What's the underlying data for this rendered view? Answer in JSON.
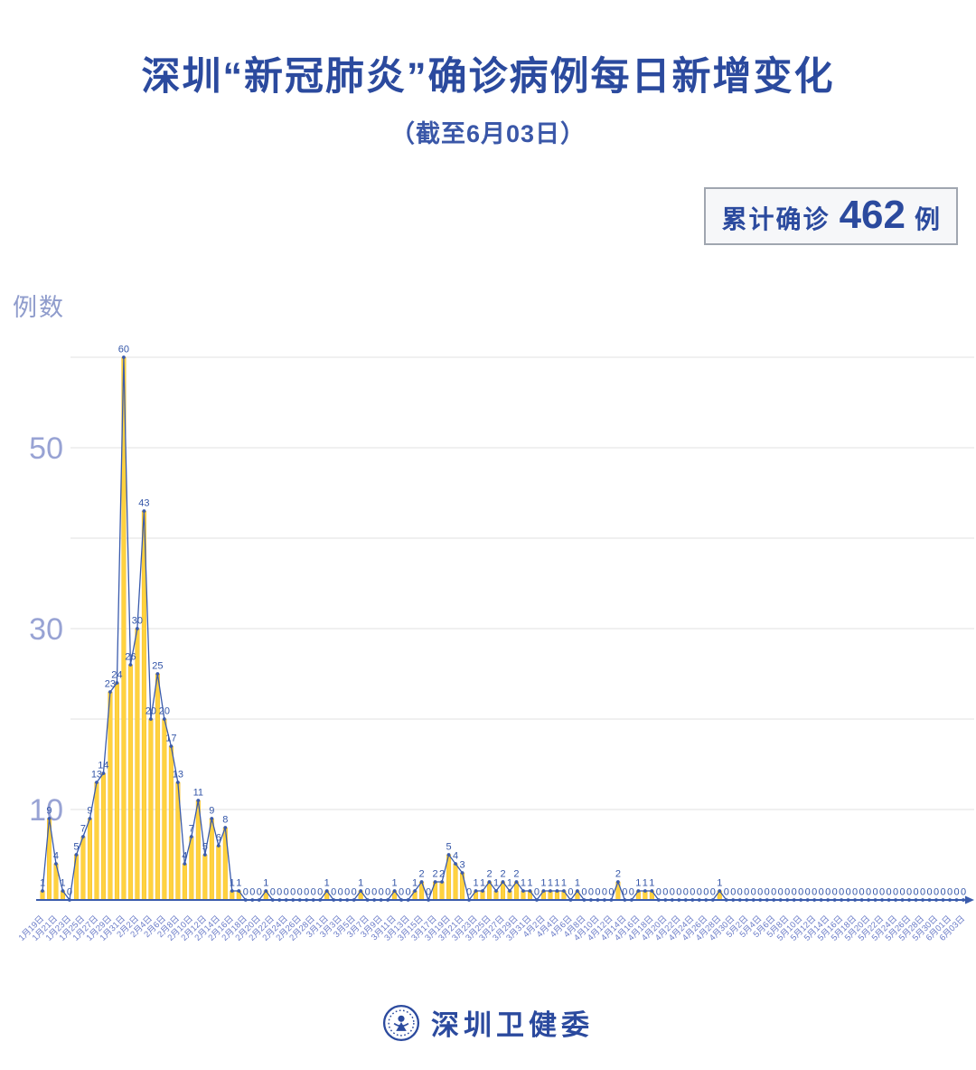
{
  "header": {
    "title": "深圳“新冠肺炎”确诊病例每日新增变化",
    "subtitle": "（截至6月03日）"
  },
  "summary_badge": {
    "prefix": "累计确诊",
    "value": "462",
    "unit": "例"
  },
  "footer": {
    "brand": "深圳卫健委",
    "logo": "shenzhen-health-commission-emblem"
  },
  "chart_data": {
    "type": "area",
    "title": "深圳“新冠肺炎”确诊病例每日新增变化",
    "subtitle": "（截至6月03日）",
    "ylabel": "例数",
    "xlabel": "",
    "ylim": [
      0,
      60
    ],
    "grid": true,
    "legend_position": "none",
    "gridline_values": [
      10,
      20,
      30,
      40,
      50,
      60
    ],
    "ytick_labels": [
      10,
      30,
      50
    ],
    "x_tick_every": 2,
    "x_tick_labels": [
      "1月19日",
      "1月21日",
      "1月23日",
      "1月25日",
      "1月27日",
      "1月29日",
      "1月31日",
      "2月2日",
      "2月4日",
      "2月6日",
      "2月8日",
      "2月10日",
      "2月12日",
      "2月14日",
      "2月16日",
      "2月18日",
      "2月20日",
      "2月22日",
      "2月24日",
      "2月26日",
      "2月28日",
      "3月1日",
      "3月3日",
      "3月5日",
      "3月7日",
      "3月9日",
      "3月11日",
      "3月13日",
      "3月15日",
      "3月17日",
      "3月19日",
      "3月21日",
      "3月23日",
      "3月25日",
      "3月27日",
      "3月29日",
      "3月31日",
      "4月2日",
      "4月4日",
      "4月6日",
      "4月8日",
      "4月10日",
      "4月12日",
      "4月14日",
      "4月16日",
      "4月18日",
      "4月20日",
      "4月22日",
      "4月24日",
      "4月26日",
      "4月28日",
      "4月30日",
      "5月2日",
      "5月4日",
      "5月6日",
      "5月8日",
      "5月10日",
      "5月12日",
      "5月14日",
      "5月16日",
      "5月18日",
      "5月20日",
      "5月22日",
      "5月24日",
      "5月26日",
      "5月28日",
      "5月30日",
      "6月01日",
      "6月03日"
    ],
    "values": [
      1,
      9,
      4,
      1,
      0,
      5,
      7,
      9,
      13,
      14,
      23,
      24,
      60,
      26,
      30,
      43,
      20,
      25,
      20,
      17,
      13,
      4,
      7,
      11,
      5,
      9,
      6,
      8,
      1,
      1,
      0,
      0,
      0,
      1,
      0,
      0,
      0,
      0,
      0,
      0,
      0,
      0,
      1,
      0,
      0,
      0,
      0,
      1,
      0,
      0,
      0,
      0,
      1,
      0,
      0,
      1,
      2,
      0,
      2,
      2,
      5,
      4,
      3,
      0,
      1,
      1,
      2,
      1,
      2,
      1,
      2,
      1,
      1,
      0,
      1,
      1,
      1,
      1,
      0,
      1,
      0,
      0,
      0,
      0,
      0,
      2,
      0,
      0,
      1,
      1,
      1,
      0,
      0,
      0,
      0,
      0,
      0,
      0,
      0,
      0,
      1,
      0,
      0,
      0,
      0,
      0,
      0,
      0,
      0,
      0,
      0,
      0,
      0,
      0,
      0,
      0,
      0,
      0,
      0,
      0,
      0,
      0,
      0,
      0,
      0,
      0,
      0,
      0,
      0,
      0,
      0,
      0,
      0,
      0,
      0,
      0,
      0
    ],
    "total_sum": 462,
    "colors": {
      "title": "#2b4a9e",
      "bar": "#ffd23f",
      "bar_edge": "#f2b512",
      "line": "#3a5bac",
      "dot": "#3a5bac",
      "point_label": "#3456a8",
      "grid": "#e8e8e8",
      "y_tick": "#98a3d4",
      "x_tick": "#6b7cc8",
      "axis": "#3a5bac"
    }
  }
}
